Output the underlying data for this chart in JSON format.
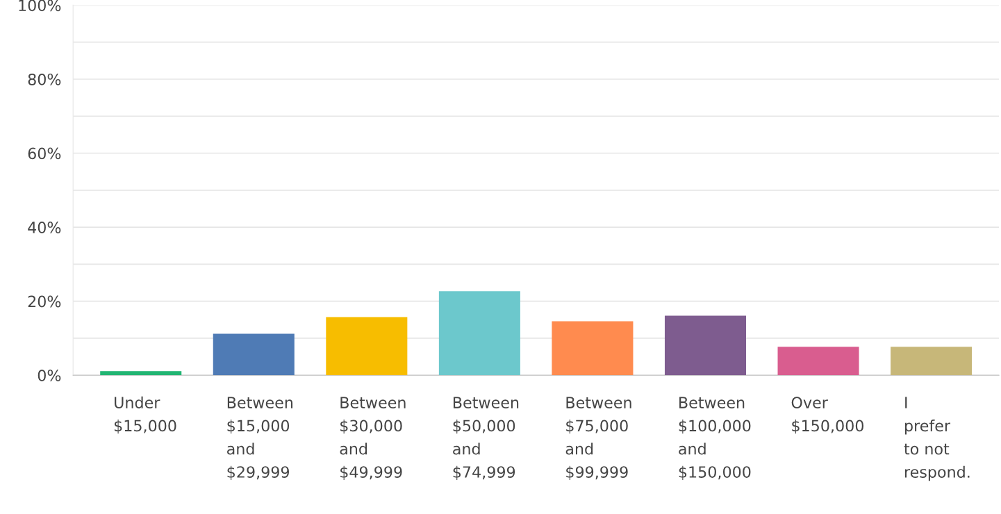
{
  "chart_data": {
    "type": "bar",
    "categories": [
      "Under\n$15,000",
      "Between\n$15,000\nand\n$29,999",
      "Between\n$30,000\nand\n$49,999",
      "Between\n$50,000\nand\n$74,999",
      "Between\n$75,000\nand\n$99,999",
      "Between\n$100,000\nand\n$150,000",
      "Over\n$150,000",
      "I\nprefer\nto not\nrespond."
    ],
    "values": [
      1.1,
      11.2,
      15.7,
      22.7,
      14.6,
      16.1,
      7.7,
      7.7
    ],
    "colors": [
      "#21b573",
      "#4f7bb5",
      "#f7bd00",
      "#6cc8cc",
      "#ff8b4f",
      "#7e5c8f",
      "#d95d8f",
      "#c7b779"
    ],
    "ylim": [
      0,
      100
    ],
    "yticks": [
      {
        "value": 0,
        "label": "0%"
      },
      {
        "value": 10,
        "label": null
      },
      {
        "value": 20,
        "label": "20%"
      },
      {
        "value": 30,
        "label": null
      },
      {
        "value": 40,
        "label": "40%"
      },
      {
        "value": 50,
        "label": null
      },
      {
        "value": 60,
        "label": "60%"
      },
      {
        "value": 70,
        "label": null
      },
      {
        "value": 80,
        "label": "80%"
      },
      {
        "value": 90,
        "label": null
      },
      {
        "value": 100,
        "label": "100%"
      }
    ],
    "grid": "y"
  }
}
